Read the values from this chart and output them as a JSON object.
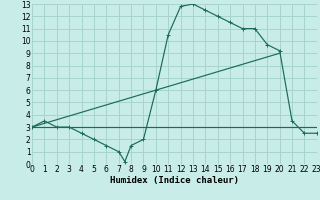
{
  "bg_color": "#c8ece8",
  "grid_color": "#a8d4ce",
  "line_color": "#1a6b5a",
  "xlabel": "Humidex (Indice chaleur)",
  "xlim": [
    0,
    23
  ],
  "ylim": [
    0,
    13
  ],
  "xticks": [
    0,
    1,
    2,
    3,
    4,
    5,
    6,
    7,
    8,
    9,
    10,
    11,
    12,
    13,
    14,
    15,
    16,
    17,
    18,
    19,
    20,
    21,
    22,
    23
  ],
  "yticks": [
    0,
    1,
    2,
    3,
    4,
    5,
    6,
    7,
    8,
    9,
    10,
    11,
    12,
    13
  ],
  "curve1_x": [
    0,
    1,
    2,
    3,
    4,
    5,
    6,
    7,
    7.5,
    8,
    9,
    10,
    11,
    12,
    13,
    14,
    15,
    16,
    17,
    18,
    19,
    20,
    21,
    22,
    23
  ],
  "curve1_y": [
    3.0,
    3.5,
    3.0,
    3.0,
    2.5,
    2.0,
    1.5,
    1.0,
    0.2,
    1.5,
    2.0,
    6.0,
    10.5,
    12.8,
    13.0,
    12.5,
    12.0,
    11.5,
    11.0,
    11.0,
    9.7,
    9.2,
    3.5,
    2.5,
    2.5
  ],
  "curve2_x": [
    0,
    16,
    20,
    23
  ],
  "curve2_y": [
    3.0,
    3.0,
    3.0,
    3.0
  ],
  "curve3_x": [
    0,
    20
  ],
  "curve3_y": [
    3.0,
    9.0
  ],
  "figsize": [
    3.2,
    2.0
  ],
  "dpi": 100,
  "tick_labelsize": 5.5,
  "xlabel_fontsize": 6.5,
  "lw": 0.85,
  "marker_size": 2.8
}
